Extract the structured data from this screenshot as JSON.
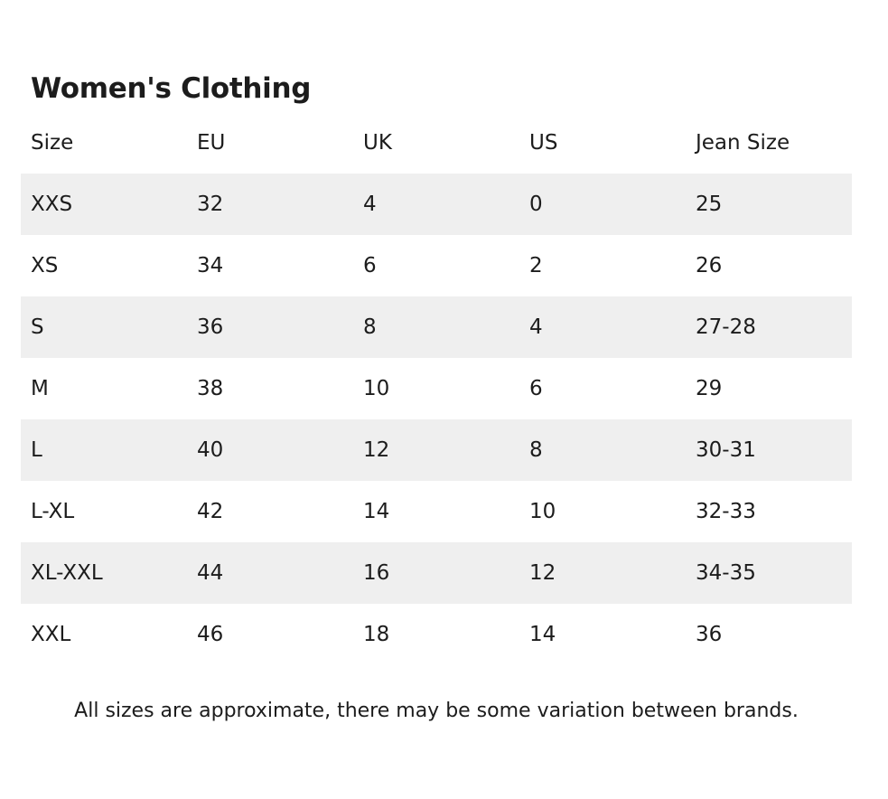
{
  "title": "Women's Clothing",
  "table": {
    "headers": [
      "Size",
      "EU",
      "UK",
      "US",
      "Jean Size"
    ],
    "rows": [
      [
        "XXS",
        "32",
        "4",
        "0",
        "25"
      ],
      [
        "XS",
        "34",
        "6",
        "2",
        "26"
      ],
      [
        "S",
        "36",
        "8",
        "4",
        "27-28"
      ],
      [
        "M",
        "38",
        "10",
        "6",
        "29"
      ],
      [
        "L",
        "40",
        "12",
        "8",
        "30-31"
      ],
      [
        "L-XL",
        "42",
        "14",
        "10",
        "32-33"
      ],
      [
        "XL-XXL",
        "44",
        "16",
        "12",
        "34-35"
      ],
      [
        "XXL",
        "46",
        "18",
        "14",
        "36"
      ]
    ]
  },
  "note": "All sizes are approximate, there may be some variation between brands.",
  "colors": {
    "text": "#1c1c1c",
    "stripe": "#efefef",
    "background": "#ffffff"
  }
}
